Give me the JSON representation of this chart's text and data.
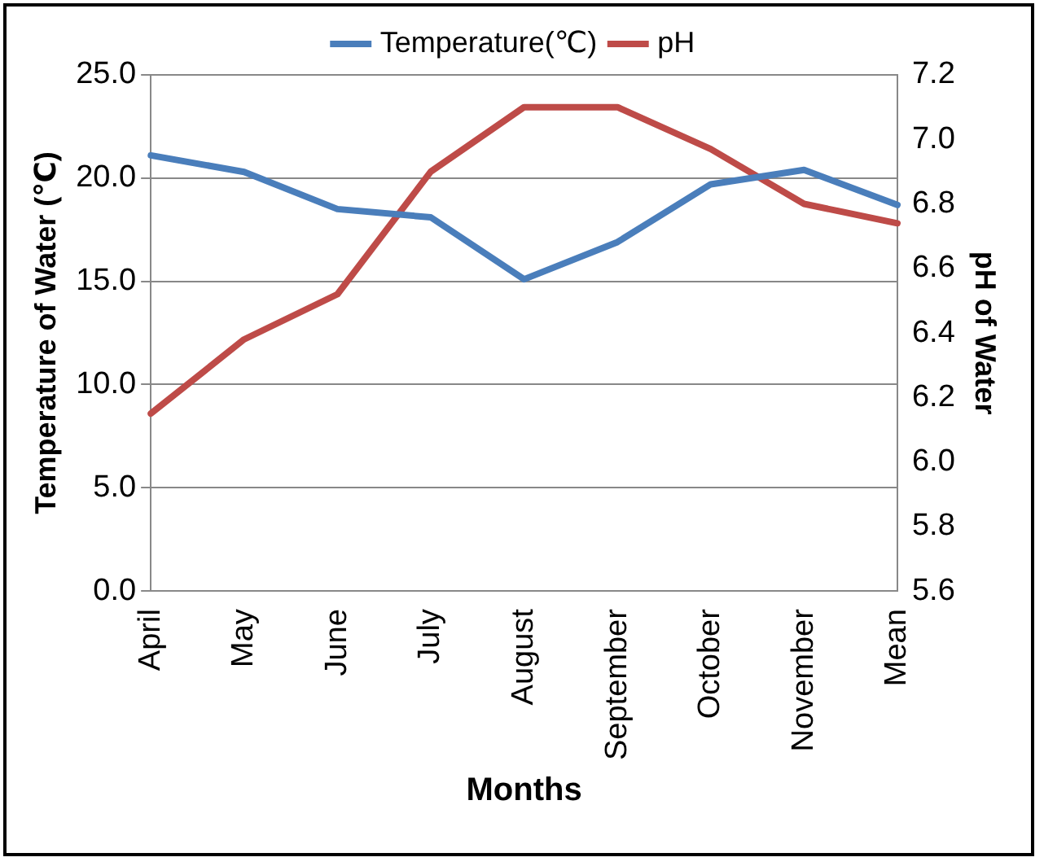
{
  "chart_data": {
    "type": "line",
    "xlabel": "Months",
    "ylabel": "Temperature of Water (℃)",
    "y2label": "pH of Water",
    "categories": [
      "April",
      "May",
      "June",
      "July",
      "August",
      "September",
      "October",
      "November",
      "Mean"
    ],
    "series": [
      {
        "name": "Temperature(℃)",
        "color": "#4a7ebb",
        "values": [
          21.1,
          20.3,
          18.5,
          18.1,
          15.1,
          16.9,
          19.7,
          20.4,
          18.7
        ]
      },
      {
        "name": "pH",
        "color": "#be4b48",
        "axis": "y2",
        "values": [
          6.15,
          6.38,
          6.52,
          6.9,
          7.1,
          7.1,
          6.97,
          6.8,
          6.74
        ]
      }
    ],
    "ylim": [
      0,
      25
    ],
    "yticks": [
      {
        "value": 0,
        "label": "0.0"
      },
      {
        "value": 5,
        "label": "5.0"
      },
      {
        "value": 10,
        "label": "10.0"
      },
      {
        "value": 15,
        "label": "15.0"
      },
      {
        "value": 20,
        "label": "20.0"
      },
      {
        "value": 25,
        "label": "25.0"
      }
    ],
    "y2lim": [
      5.6,
      7.2
    ],
    "y2ticks": [
      5.6,
      5.8,
      {
        "value": 6,
        "label": "6.0"
      },
      6.2,
      6.4,
      6.6,
      6.8,
      {
        "value": 7,
        "label": "7.0"
      },
      7.2
    ],
    "grid": "y",
    "legend": "top",
    "marker": "none",
    "line_style": "solid"
  }
}
